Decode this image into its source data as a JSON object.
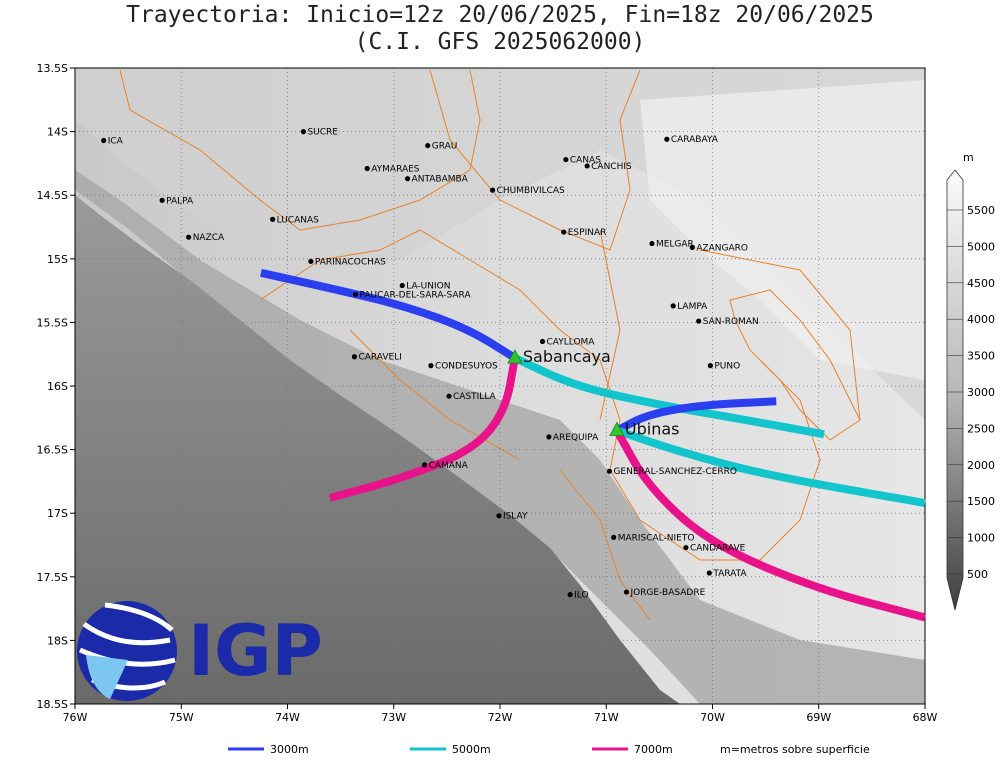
{
  "title": {
    "line1": "Trayectoria: Inicio=12z 20/06/2025, Fin=18z 20/06/2025",
    "line2": "(C.I. GFS 2025062000)"
  },
  "axes": {
    "lon_ticks": [
      "76W",
      "75W",
      "74W",
      "73W",
      "72W",
      "71W",
      "70W",
      "69W",
      "68W"
    ],
    "lat_ticks": [
      "13.5S",
      "14S",
      "14.5S",
      "15S",
      "15.5S",
      "16S",
      "16.5S",
      "17S",
      "17.5S",
      "18S",
      "18.5S"
    ]
  },
  "colorbar": {
    "unit": "m",
    "ticks": [
      "500",
      "1000",
      "1500",
      "2000",
      "2500",
      "3000",
      "3500",
      "4000",
      "4500",
      "5000",
      "5500"
    ]
  },
  "sources": [
    {
      "name": "Sabancaya",
      "lon": -71.86,
      "lat": -15.78
    },
    {
      "name": "Ubinas",
      "lon": -70.9,
      "lat": -16.35
    }
  ],
  "cities": [
    {
      "name": "ICA",
      "lon": -75.73,
      "lat": -14.07
    },
    {
      "name": "SUCRE",
      "lon": -73.85,
      "lat": -14.0
    },
    {
      "name": "GRAU",
      "lon": -72.68,
      "lat": -14.11
    },
    {
      "name": "CARABAYA",
      "lon": -70.43,
      "lat": -14.06
    },
    {
      "name": "CANAS",
      "lon": -71.38,
      "lat": -14.22
    },
    {
      "name": "CANCHIS",
      "lon": -71.18,
      "lat": -14.27
    },
    {
      "name": "AYMARAES",
      "lon": -73.25,
      "lat": -14.29
    },
    {
      "name": "ANTABAMBA",
      "lon": -72.87,
      "lat": -14.37
    },
    {
      "name": "CHUMBIVILCAS",
      "lon": -72.07,
      "lat": -14.46
    },
    {
      "name": "PALPA",
      "lon": -75.18,
      "lat": -14.54
    },
    {
      "name": "LUCANAS",
      "lon": -74.14,
      "lat": -14.69
    },
    {
      "name": "NAZCA",
      "lon": -74.93,
      "lat": -14.83
    },
    {
      "name": "ESPINAR",
      "lon": -71.4,
      "lat": -14.79
    },
    {
      "name": "MELGAR",
      "lon": -70.57,
      "lat": -14.88
    },
    {
      "name": "AZANGARO",
      "lon": -70.19,
      "lat": -14.91
    },
    {
      "name": "PARINACOCHAS",
      "lon": -73.78,
      "lat": -15.02
    },
    {
      "name": "LA-UNION",
      "lon": -72.92,
      "lat": -15.21
    },
    {
      "name": "PAUCAR-DEL-SARA-SARA",
      "lon": -73.36,
      "lat": -15.28
    },
    {
      "name": "LAMPA",
      "lon": -70.37,
      "lat": -15.37
    },
    {
      "name": "SAN-ROMAN",
      "lon": -70.13,
      "lat": -15.49
    },
    {
      "name": "CAYLLOMA",
      "lon": -71.6,
      "lat": -15.65
    },
    {
      "name": "CARAVELI",
      "lon": -73.37,
      "lat": -15.77
    },
    {
      "name": "CONDESUYOS",
      "lon": -72.65,
      "lat": -15.84
    },
    {
      "name": "PUNO",
      "lon": -70.02,
      "lat": -15.84
    },
    {
      "name": "CASTILLA",
      "lon": -72.48,
      "lat": -16.08
    },
    {
      "name": "AREQUIPA",
      "lon": -71.54,
      "lat": -16.4
    },
    {
      "name": "CAMANA",
      "lon": -72.71,
      "lat": -16.62
    },
    {
      "name": "GENERAL-SANCHEZ-CERRO",
      "lon": -70.97,
      "lat": -16.67
    },
    {
      "name": "ISLAY",
      "lon": -72.01,
      "lat": -17.02
    },
    {
      "name": "MARISCAL-NIETO",
      "lon": -70.93,
      "lat": -17.19
    },
    {
      "name": "CANDARAVE",
      "lon": -70.25,
      "lat": -17.27
    },
    {
      "name": "TARATA",
      "lon": -70.03,
      "lat": -17.47
    },
    {
      "name": "ILO",
      "lon": -71.34,
      "lat": -17.64
    },
    {
      "name": "JORGE-BASADRE",
      "lon": -70.81,
      "lat": -17.62
    }
  ],
  "trajectories": [
    {
      "level": "3000m",
      "color": "#2b3ff0",
      "from": "Sabancaya",
      "points": [
        [
          -71.86,
          -15.78
        ],
        [
          -72.3,
          -15.55
        ],
        [
          -72.9,
          -15.37
        ],
        [
          -73.5,
          -15.25
        ],
        [
          -74.25,
          -15.11
        ]
      ]
    },
    {
      "level": "5000m",
      "color": "#12c4cc",
      "from": "Sabancaya",
      "points": [
        [
          -71.86,
          -15.78
        ],
        [
          -71.3,
          -16.0
        ],
        [
          -70.5,
          -16.15
        ],
        [
          -69.6,
          -16.28
        ],
        [
          -68.95,
          -16.38
        ]
      ]
    },
    {
      "level": "7000m",
      "color": "#e8138a",
      "from": "Sabancaya",
      "points": [
        [
          -71.86,
          -15.78
        ],
        [
          -71.95,
          -16.2
        ],
        [
          -72.25,
          -16.5
        ],
        [
          -72.9,
          -16.72
        ],
        [
          -73.6,
          -16.88
        ]
      ]
    },
    {
      "level": "3000m",
      "color": "#2b3ff0",
      "from": "Ubinas",
      "points": [
        [
          -70.9,
          -16.35
        ],
        [
          -70.6,
          -16.22
        ],
        [
          -70.1,
          -16.15
        ],
        [
          -69.4,
          -16.12
        ]
      ]
    },
    {
      "level": "5000m",
      "color": "#12c4cc",
      "from": "Ubinas",
      "points": [
        [
          -70.9,
          -16.35
        ],
        [
          -70.3,
          -16.52
        ],
        [
          -69.5,
          -16.7
        ],
        [
          -68.0,
          -16.92
        ]
      ]
    },
    {
      "level": "7000m",
      "color": "#e8138a",
      "from": "Ubinas",
      "points": [
        [
          -70.9,
          -16.35
        ],
        [
          -70.6,
          -16.8
        ],
        [
          -70.0,
          -17.25
        ],
        [
          -69.0,
          -17.6
        ],
        [
          -68.0,
          -17.82
        ]
      ]
    }
  ],
  "legend": [
    {
      "label": "3000m",
      "color": "#2b3ff0"
    },
    {
      "label": "5000m",
      "color": "#12c4cc"
    },
    {
      "label": "7000m",
      "color": "#e8138a"
    },
    {
      "label": "m=metros sobre superficie",
      "color": ""
    }
  ],
  "logo": {
    "text": "IGP"
  }
}
